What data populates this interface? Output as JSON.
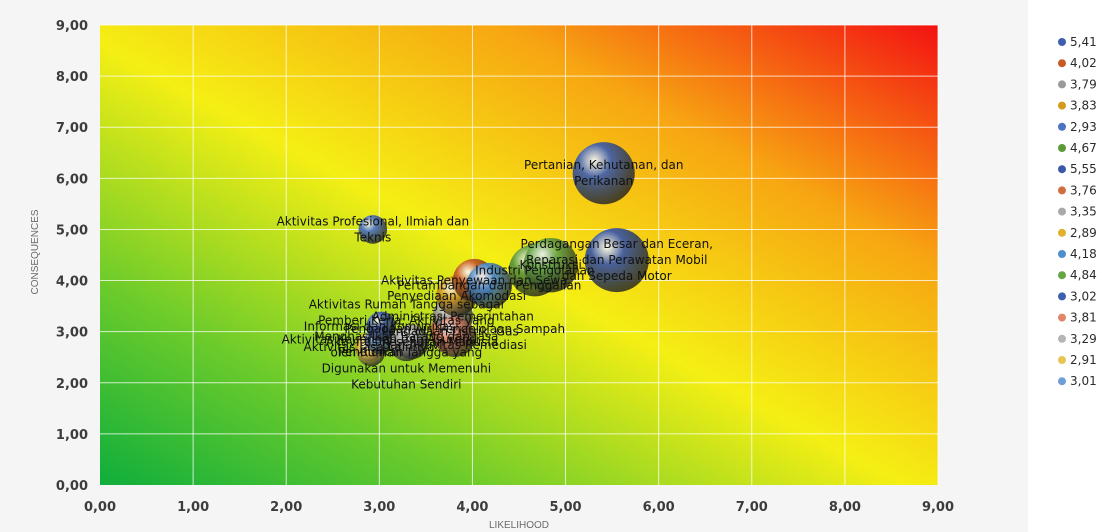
{
  "chart_data": {
    "type": "bubble",
    "xlabel": "LIKELIHOOD",
    "ylabel": "CONSEQUENCES",
    "xlim": [
      0,
      9
    ],
    "ylim": [
      0,
      9
    ],
    "x_ticks": [
      "0,00",
      "1,00",
      "2,00",
      "3,00",
      "4,00",
      "5,00",
      "6,00",
      "7,00",
      "8,00",
      "9,00"
    ],
    "y_ticks": [
      "0,00",
      "1,00",
      "2,00",
      "3,00",
      "4,00",
      "5,00",
      "6,00",
      "7,00",
      "8,00",
      "9,00"
    ],
    "background": "risk gradient green (bottom-left) to yellow to red (top-right)",
    "legend_position": "right",
    "series": [
      {
        "name": "5,41",
        "x": 5.41,
        "y": 6.1,
        "color": "#3f5fae",
        "label": [
          "Pertanian, Kehutanan, dan",
          "Perikanan"
        ]
      },
      {
        "name": "4,02",
        "x": 4.02,
        "y": 4.0,
        "color": "#c65a24",
        "label": [
          "Aktivitas Penyewaan dan Sewa"
        ]
      },
      {
        "name": "3,79",
        "x": 3.79,
        "y": 3.3,
        "color": "#9a9a9a",
        "label": [
          "Administrasi Pemerintahan"
        ]
      },
      {
        "name": "3,83",
        "x": 3.83,
        "y": 3.7,
        "color": "#d39a1e",
        "label": [
          "Penyediaan Akomodasi"
        ]
      },
      {
        "name": "2,93",
        "x": 2.93,
        "y": 5.0,
        "color": "#4a73c2",
        "label": [
          "Aktivitas Profesional, Ilmiah dan",
          "Teknis"
        ]
      },
      {
        "name": "4,67",
        "x": 4.67,
        "y": 4.2,
        "color": "#5e9a3a",
        "label": [
          "Industri Pengolahan"
        ]
      },
      {
        "name": "5,55",
        "x": 5.55,
        "y": 4.4,
        "color": "#3a57a8",
        "label": [
          "Perdagangan Besar dan Eceran,",
          "Reparasi dan Perawatan Mobil",
          "dan Sepeda Motor"
        ]
      },
      {
        "name": "3,76",
        "x": 3.76,
        "y": 3.0,
        "color": "#cf6e3e",
        "label": [
          "Pengadaan Listrik, Gas"
        ]
      },
      {
        "name": "3,35",
        "x": 3.35,
        "y": 2.8,
        "color": "#a9a9a9",
        "label": [
          "Aktivitas Kesehatan Manusia"
        ]
      },
      {
        "name": "2,89",
        "x": 2.89,
        "y": 2.7,
        "color": "#e0b12c",
        "label": [
          "Aktivitas Jasa Lainnya"
        ]
      },
      {
        "name": "4,18",
        "x": 4.18,
        "y": 3.9,
        "color": "#4f8fcf",
        "label": [
          "Pertambangan dan Penggalian"
        ]
      },
      {
        "name": "4,84",
        "x": 4.84,
        "y": 4.3,
        "color": "#66a544",
        "label": [
          "Konstruksi"
        ]
      },
      {
        "name": "3,02",
        "x": 3.02,
        "y": 3.1,
        "color": "#3f5fae",
        "label": [
          "Informasi dan Komunikasi"
        ]
      },
      {
        "name": "3,81",
        "x": 3.81,
        "y": 2.9,
        "color": "#e0866a",
        "label": [
          "Pengadaan Air, Pengelolaan Sampah",
          "dan Aktivitas Remediasi"
        ]
      },
      {
        "name": "3,29",
        "x": 3.29,
        "y": 2.75,
        "color": "#b5b5b5",
        "label": [
          "Aktivitas Rumah Tangga sebagai",
          "Pemberi Kerja; Aktivitas yang",
          "Menghasilkan Barang dan Jasa",
          "oleh Rumah Tangga yang",
          "Digunakan untuk Memenuhi",
          "Kebutuhan Sendiri"
        ]
      },
      {
        "name": "2,91",
        "x": 2.91,
        "y": 2.6,
        "color": "#e7c552",
        "label": [
          "Pendidikan"
        ]
      },
      {
        "name": "3,01",
        "x": 3.01,
        "y": 2.85,
        "color": "#6f9fd6",
        "label": [
          "Aktivitas Keuangan dan Asuransi"
        ]
      }
    ]
  }
}
